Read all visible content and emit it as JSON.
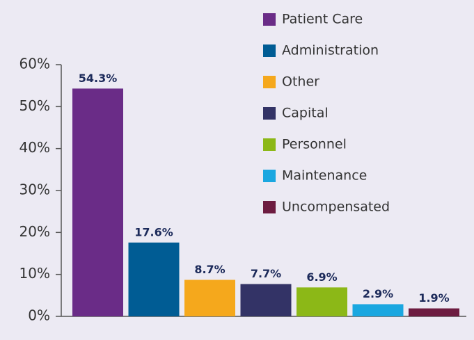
{
  "chart_data": {
    "type": "bar",
    "categories": [
      "Patient Care",
      "Administration",
      "Other",
      "Capital",
      "Personnel",
      "Maintenance",
      "Uncompensated"
    ],
    "values": [
      54.3,
      17.6,
      8.7,
      7.7,
      6.9,
      2.9,
      1.9
    ],
    "value_labels": [
      "54.3%",
      "17.6%",
      "8.7%",
      "7.7%",
      "6.9%",
      "2.9%",
      "1.9%"
    ],
    "colors": [
      "#6a2c87",
      "#005c94",
      "#f5a81c",
      "#333366",
      "#8cb817",
      "#1aa7e0",
      "#6d1c40"
    ],
    "ylim": [
      0,
      60
    ],
    "yticks": [
      {
        "value": 0,
        "label": "0%"
      },
      {
        "value": 10,
        "label": "10%"
      },
      {
        "value": 20,
        "label": "20%"
      },
      {
        "value": 30,
        "label": "30%"
      },
      {
        "value": 40,
        "label": "40%"
      },
      {
        "value": 50,
        "label": "50%"
      },
      {
        "value": 60,
        "label": "60%"
      }
    ],
    "legend": "top-right"
  }
}
